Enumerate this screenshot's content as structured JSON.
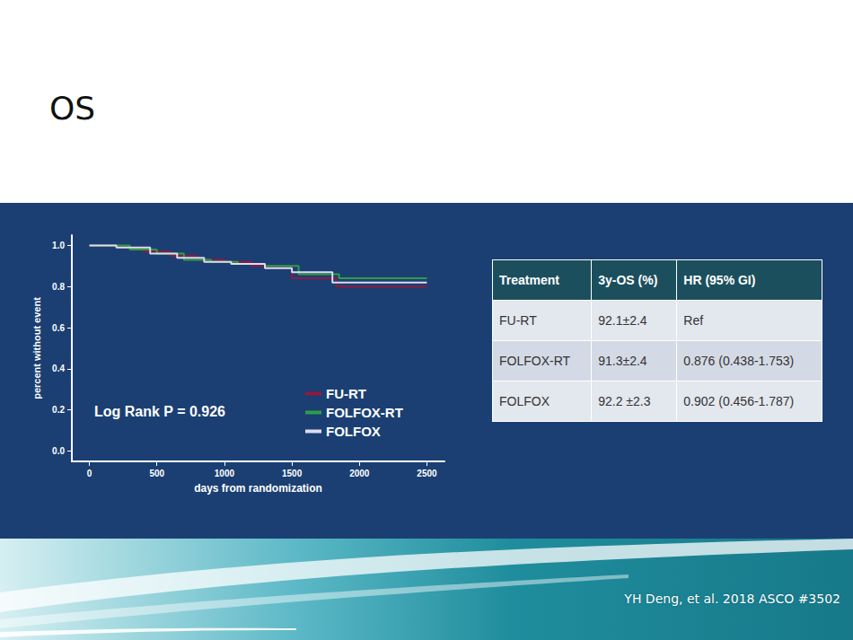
{
  "title": "OS",
  "chart_data": {
    "type": "step",
    "x_label": "days from randomization",
    "y_label": "percent without event",
    "annotations": [
      "Log Rank P = 0.926"
    ],
    "xlim": [
      -130,
      2630
    ],
    "xticks": [
      0,
      500,
      1000,
      1500,
      2000,
      2500
    ],
    "ylim": [
      -0.05,
      1.05
    ],
    "yticks": [
      {
        "value": 0,
        "label": "0.0"
      },
      {
        "value": 0.2,
        "label": "0.2"
      },
      {
        "value": 0.4,
        "label": "0.4"
      },
      {
        "value": 0.6,
        "label": "0.6"
      },
      {
        "value": 0.8,
        "label": "0.8"
      },
      {
        "value": 1,
        "label": "1.0"
      }
    ],
    "grid": false,
    "legend": "lower right",
    "series": [
      {
        "name": "FU-RT",
        "color": "#8e1b3f",
        "x": [
          0,
          250,
          400,
          600,
          800,
          1000,
          1200,
          1400,
          1500,
          1830,
          2500
        ],
        "values": [
          1.0,
          0.99,
          0.97,
          0.95,
          0.93,
          0.92,
          0.9,
          0.89,
          0.84,
          0.8,
          0.8
        ]
      },
      {
        "name": "FOLFOX-RT",
        "color": "#2f9e44",
        "x": [
          0,
          300,
          500,
          700,
          900,
          1100,
          1300,
          1550,
          1850,
          2500
        ],
        "values": [
          1.0,
          0.98,
          0.96,
          0.93,
          0.92,
          0.91,
          0.9,
          0.86,
          0.84,
          0.84
        ]
      },
      {
        "name": "FOLFOX",
        "color": "#dcdcee",
        "x": [
          0,
          200,
          450,
          650,
          850,
          1050,
          1300,
          1500,
          1800,
          2500
        ],
        "values": [
          1.0,
          0.99,
          0.96,
          0.94,
          0.92,
          0.91,
          0.89,
          0.87,
          0.82,
          0.82
        ]
      }
    ]
  },
  "table": {
    "header": [
      "Treatment",
      "3y-OS (%)",
      "HR (95% GI)"
    ],
    "rows": [
      [
        "FU-RT",
        "92.1±2.4",
        "Ref"
      ],
      [
        "FOLFOX-RT",
        "91.3±2.4",
        "0.876 (0.438-1.753)"
      ],
      [
        "FOLFOX",
        "92.2 ±2.3",
        "0.902 (0.456-1.787)"
      ]
    ]
  },
  "footer": "YH Deng, et al. 2018 ASCO #3502"
}
